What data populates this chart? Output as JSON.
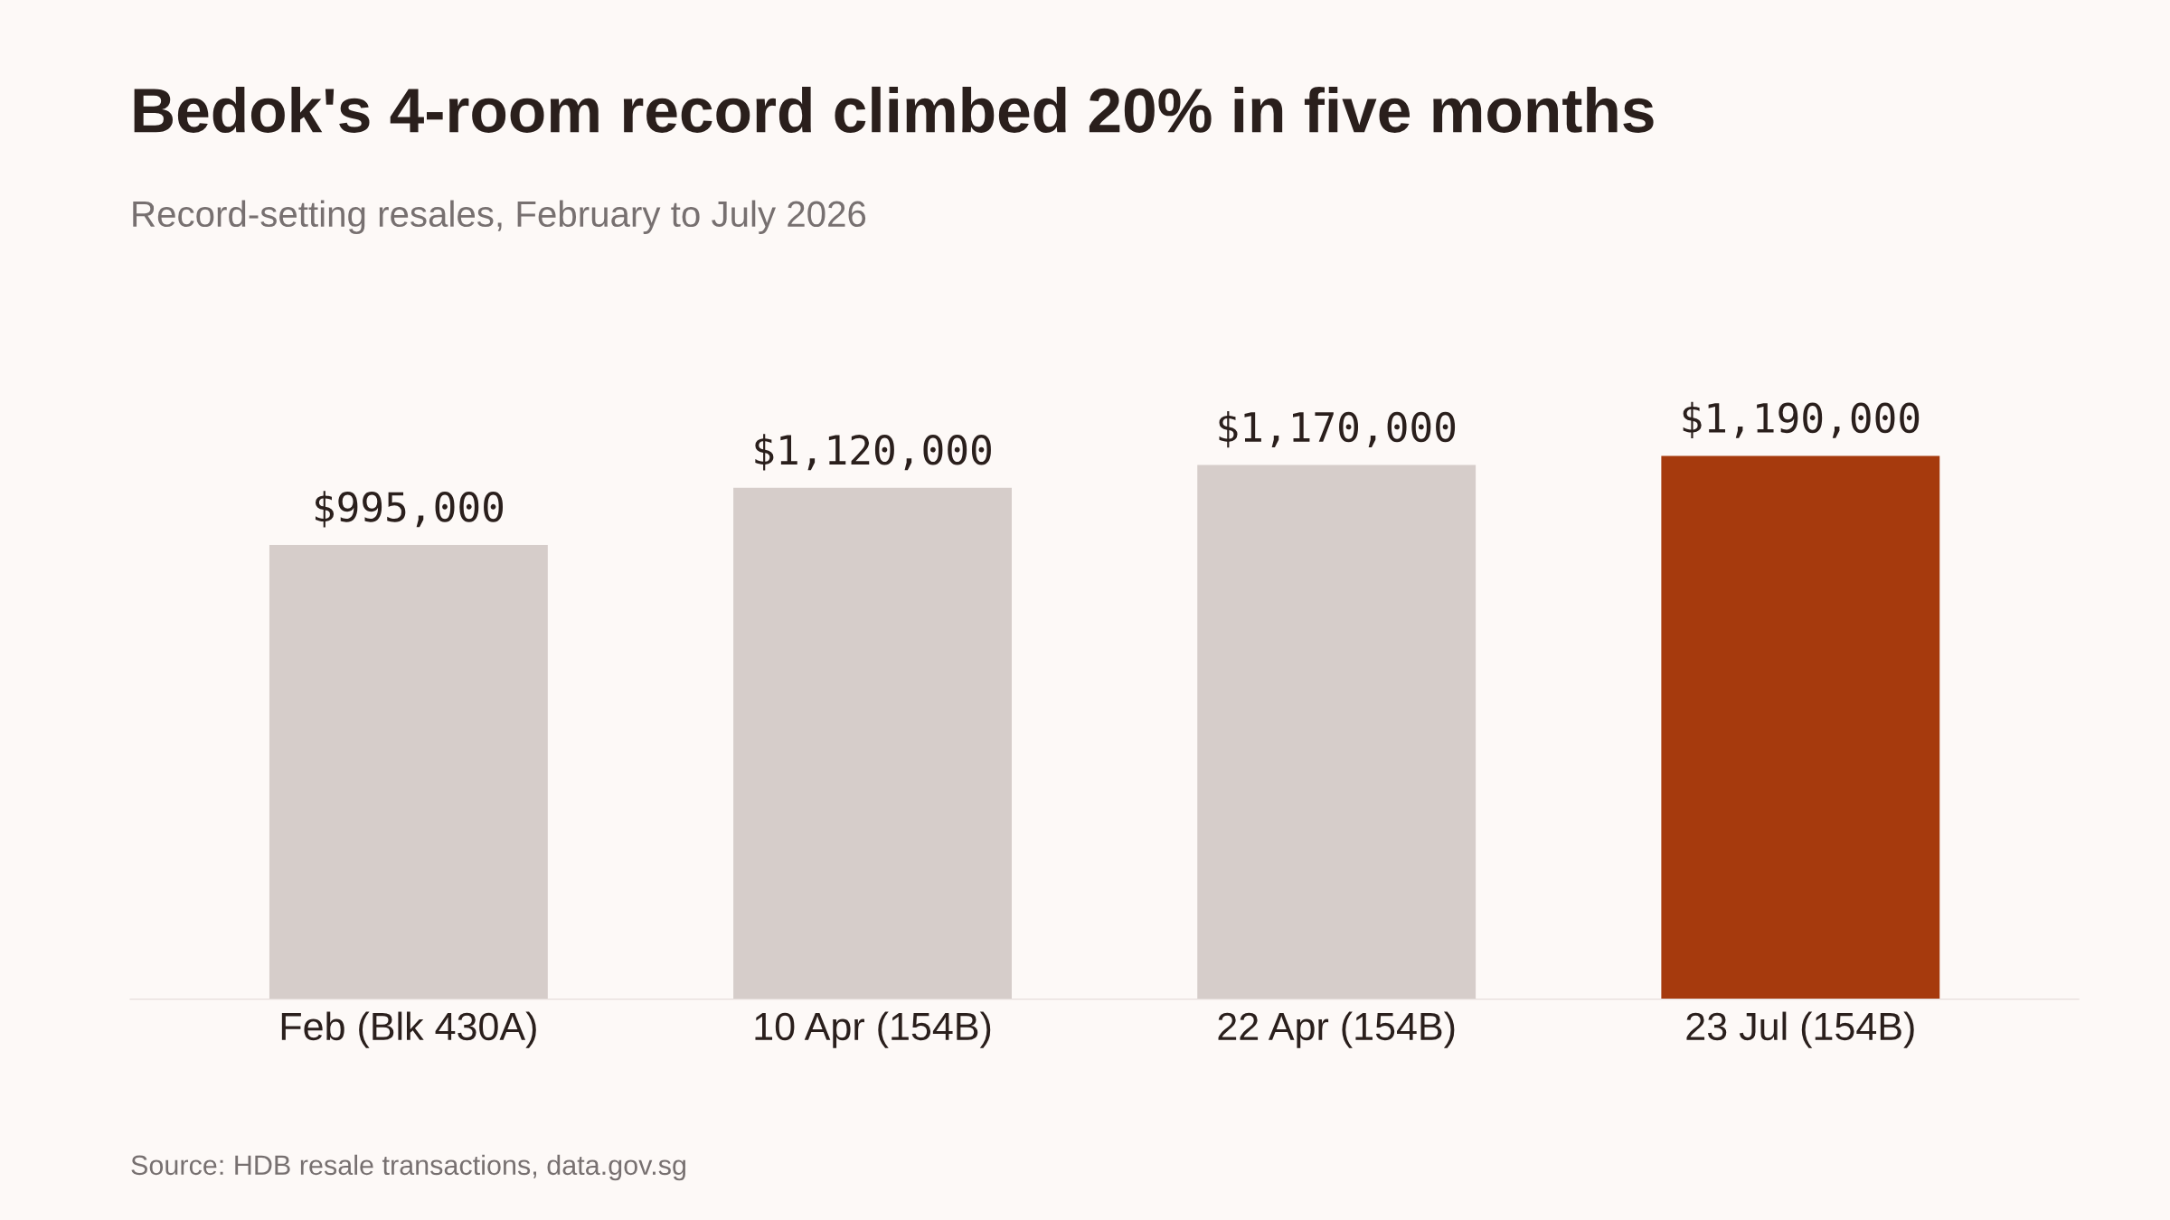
{
  "chart_data": {
    "type": "bar",
    "title": "Bedok's 4-room record climbed 20% in five months",
    "subtitle": "Record-setting resales, February to July 2026",
    "categories": [
      "Feb (Blk 430A)",
      "10 Apr (154B)",
      "22 Apr (154B)",
      "23 Jul (154B)"
    ],
    "values": [
      995000,
      1120000,
      1170000,
      1190000
    ],
    "colors": [
      "#d6cdca",
      "#d6cdca",
      "#d6cdca",
      "#a63a0d"
    ],
    "value_labels": [
      "$995,000",
      "$1,120,000",
      "$1,170,000",
      "$1,190,000"
    ],
    "annotations": [
      "Source: HDB resale transactions, data.gov.sg"
    ],
    "grid": false,
    "legend": false
  }
}
